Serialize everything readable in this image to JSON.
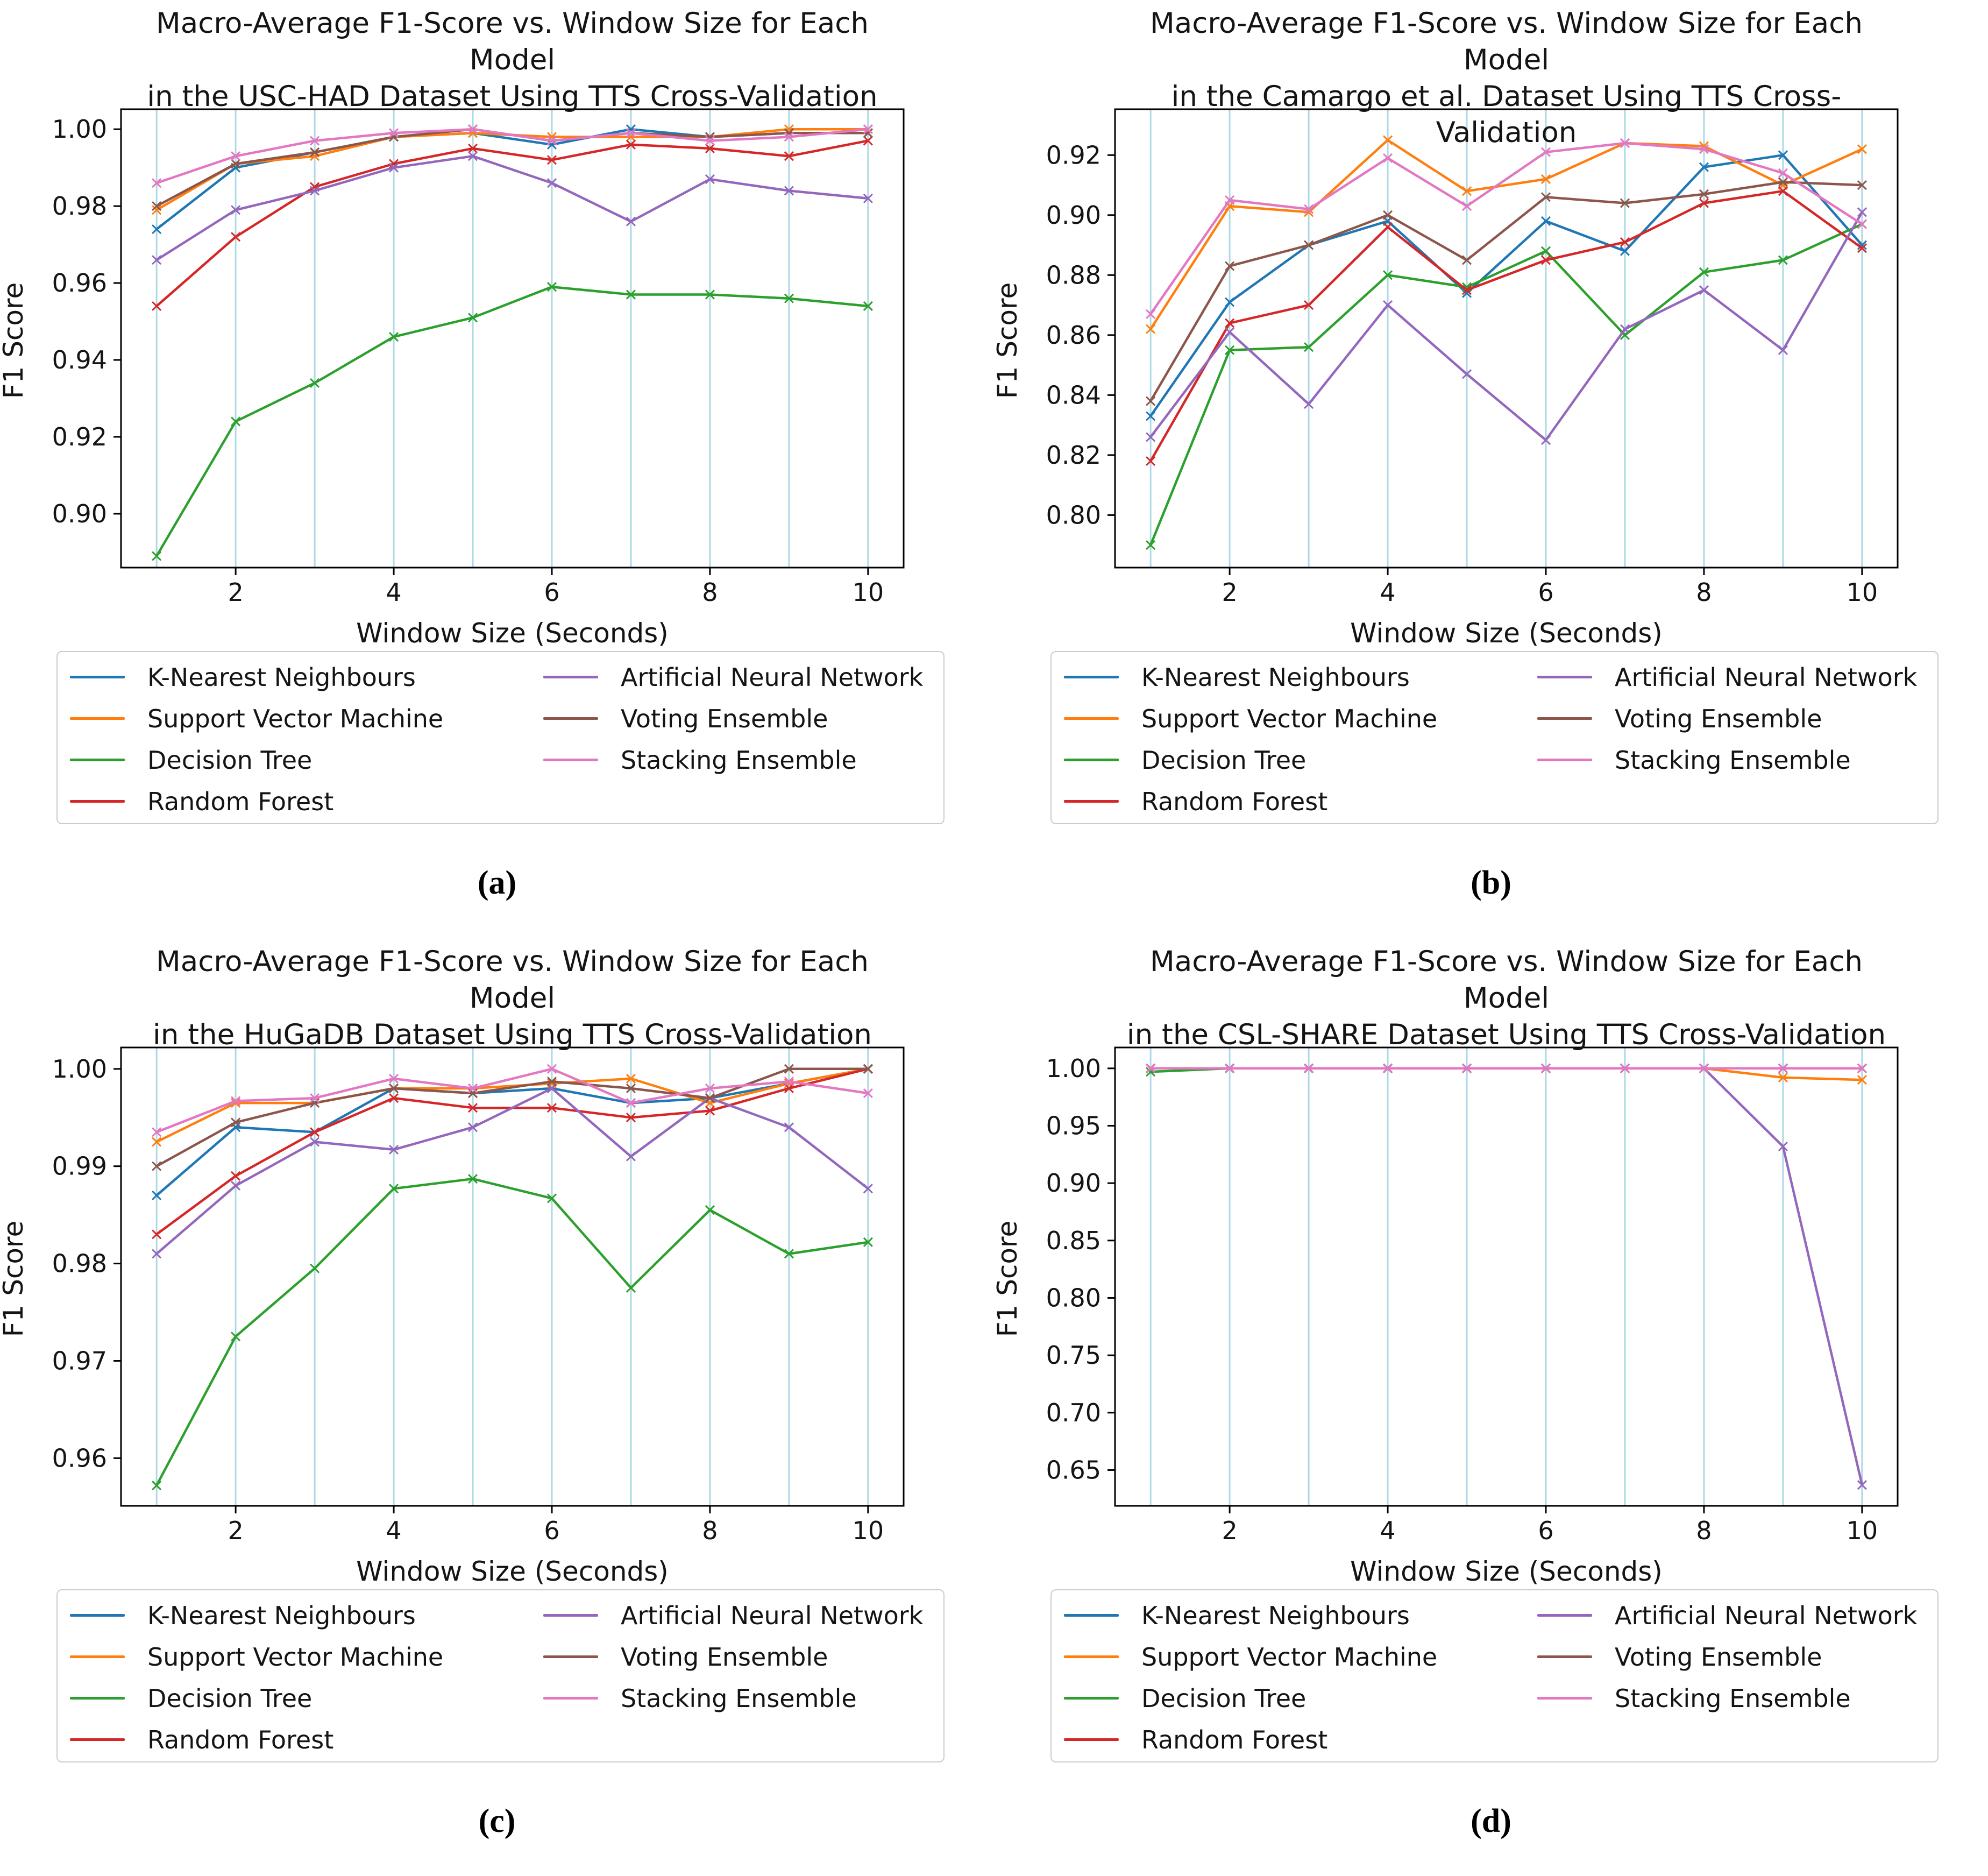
{
  "chart_data": [
    {
      "type": "line",
      "title_line1": "Macro-Average F1-Score vs. Window Size for Each Model",
      "title_line2": "in the USC-HAD Dataset Using TTS Cross-Validation",
      "caption": "(a)",
      "xlabel": "Window Size (Seconds)",
      "ylabel": "F1 Score",
      "x": [
        1,
        2,
        3,
        4,
        5,
        6,
        7,
        8,
        9,
        10
      ],
      "xticks": [
        2,
        4,
        6,
        8,
        10
      ],
      "yticks": [
        1.0,
        0.98,
        0.96,
        0.94,
        0.92,
        0.9
      ],
      "ylim": [
        0.886,
        1.0052
      ],
      "grid": "vertical",
      "gridline_color": "#add8e6",
      "marker": "x",
      "legend_position": "below",
      "legend_columns": 2,
      "series": [
        {
          "name": "K-Nearest Neighbours",
          "color": "#1f77b4",
          "values": [
            0.974,
            0.99,
            0.994,
            0.998,
            0.999,
            0.996,
            1.0,
            0.998,
            0.999,
            0.999
          ]
        },
        {
          "name": "Support Vector Machine",
          "color": "#ff7f0e",
          "values": [
            0.979,
            0.991,
            0.993,
            0.998,
            0.999,
            0.998,
            0.998,
            0.998,
            1.0,
            1.0
          ]
        },
        {
          "name": "Decision Tree",
          "color": "#2ca02c",
          "values": [
            0.889,
            0.924,
            0.934,
            0.946,
            0.951,
            0.959,
            0.957,
            0.957,
            0.956,
            0.954
          ]
        },
        {
          "name": "Random Forest",
          "color": "#d62728",
          "values": [
            0.954,
            0.972,
            0.985,
            0.991,
            0.995,
            0.992,
            0.996,
            0.995,
            0.993,
            0.997
          ]
        },
        {
          "name": "Artificial Neural Network",
          "color": "#9467bd",
          "values": [
            0.966,
            0.979,
            0.984,
            0.99,
            0.993,
            0.986,
            0.976,
            0.987,
            0.984,
            0.982
          ]
        },
        {
          "name": "Voting Ensemble",
          "color": "#8c564b",
          "values": [
            0.98,
            0.991,
            0.994,
            0.998,
            1.0,
            0.997,
            0.999,
            0.998,
            0.999,
            0.999
          ]
        },
        {
          "name": "Stacking Ensemble",
          "color": "#e377c2",
          "values": [
            0.986,
            0.993,
            0.997,
            0.999,
            1.0,
            0.997,
            0.999,
            0.997,
            0.998,
            1.0
          ]
        }
      ]
    },
    {
      "type": "line",
      "title_line1": "Macro-Average F1-Score vs. Window Size for Each Model",
      "title_line2": "in the Camargo et al. Dataset Using TTS Cross-Validation",
      "caption": "(b)",
      "xlabel": "Window Size (Seconds)",
      "ylabel": "F1 Score",
      "x": [
        1,
        2,
        3,
        4,
        5,
        6,
        7,
        8,
        9,
        10
      ],
      "xticks": [
        2,
        4,
        6,
        8,
        10
      ],
      "yticks": [
        0.92,
        0.9,
        0.88,
        0.86,
        0.84,
        0.82,
        0.8
      ],
      "ylim": [
        0.7825,
        0.9353
      ],
      "grid": "vertical",
      "gridline_color": "#add8e6",
      "marker": "x",
      "legend_position": "below",
      "legend_columns": 2,
      "series": [
        {
          "name": "K-Nearest Neighbours",
          "color": "#1f77b4",
          "values": [
            0.833,
            0.871,
            0.89,
            0.898,
            0.874,
            0.898,
            0.888,
            0.916,
            0.92,
            0.89
          ]
        },
        {
          "name": "Support Vector Machine",
          "color": "#ff7f0e",
          "values": [
            0.862,
            0.903,
            0.901,
            0.925,
            0.908,
            0.912,
            0.924,
            0.923,
            0.91,
            0.922
          ]
        },
        {
          "name": "Decision Tree",
          "color": "#2ca02c",
          "values": [
            0.79,
            0.855,
            0.856,
            0.88,
            0.876,
            0.888,
            0.86,
            0.881,
            0.885,
            0.897
          ]
        },
        {
          "name": "Random Forest",
          "color": "#d62728",
          "values": [
            0.818,
            0.864,
            0.87,
            0.896,
            0.875,
            0.885,
            0.891,
            0.904,
            0.908,
            0.889
          ]
        },
        {
          "name": "Artificial Neural Network",
          "color": "#9467bd",
          "values": [
            0.826,
            0.861,
            0.837,
            0.87,
            0.847,
            0.825,
            0.862,
            0.875,
            0.855,
            0.901
          ]
        },
        {
          "name": "Voting Ensemble",
          "color": "#8c564b",
          "values": [
            0.838,
            0.883,
            0.89,
            0.9,
            0.885,
            0.906,
            0.904,
            0.907,
            0.911,
            0.91
          ]
        },
        {
          "name": "Stacking Ensemble",
          "color": "#e377c2",
          "values": [
            0.867,
            0.905,
            0.902,
            0.919,
            0.903,
            0.921,
            0.924,
            0.922,
            0.914,
            0.897
          ]
        }
      ]
    },
    {
      "type": "line",
      "title_line1": "Macro-Average F1-Score vs. Window Size for Each Model",
      "title_line2": "in the HuGaDB Dataset Using TTS Cross-Validation",
      "caption": "(c)",
      "xlabel": "Window Size (Seconds)",
      "ylabel": "F1 Score",
      "x": [
        1,
        2,
        3,
        4,
        5,
        6,
        7,
        8,
        9,
        10
      ],
      "xticks": [
        2,
        4,
        6,
        8,
        10
      ],
      "yticks": [
        1.0,
        0.99,
        0.98,
        0.97,
        0.96
      ],
      "ylim": [
        0.9551,
        1.0022
      ],
      "grid": "vertical",
      "gridline_color": "#add8e6",
      "marker": "x",
      "legend_position": "below",
      "legend_columns": 2,
      "series": [
        {
          "name": "K-Nearest Neighbours",
          "color": "#1f77b4",
          "values": [
            0.987,
            0.994,
            0.9935,
            0.998,
            0.9975,
            0.998,
            0.9965,
            0.997,
            0.9985,
            1.0
          ]
        },
        {
          "name": "Support Vector Machine",
          "color": "#ff7f0e",
          "values": [
            0.9925,
            0.9965,
            0.9965,
            0.998,
            0.998,
            0.9985,
            0.999,
            0.9965,
            0.9985,
            1.0
          ]
        },
        {
          "name": "Decision Tree",
          "color": "#2ca02c",
          "values": [
            0.9572,
            0.9725,
            0.9795,
            0.9877,
            0.9887,
            0.9867,
            0.9775,
            0.9855,
            0.981,
            0.9822
          ]
        },
        {
          "name": "Random Forest",
          "color": "#d62728",
          "values": [
            0.983,
            0.989,
            0.9935,
            0.997,
            0.996,
            0.996,
            0.995,
            0.9957,
            0.998,
            1.0
          ]
        },
        {
          "name": "Artificial Neural Network",
          "color": "#9467bd",
          "values": [
            0.981,
            0.988,
            0.9925,
            0.9917,
            0.994,
            0.998,
            0.991,
            0.997,
            0.994,
            0.9877
          ]
        },
        {
          "name": "Voting Ensemble",
          "color": "#8c564b",
          "values": [
            0.99,
            0.9945,
            0.9965,
            0.998,
            0.9975,
            0.9987,
            0.998,
            0.997,
            1.0,
            1.0
          ]
        },
        {
          "name": "Stacking Ensemble",
          "color": "#e377c2",
          "values": [
            0.9935,
            0.9967,
            0.997,
            0.999,
            0.998,
            1.0,
            0.9965,
            0.998,
            0.9987,
            0.9975
          ]
        }
      ]
    },
    {
      "type": "line",
      "title_line1": "Macro-Average F1-Score vs. Window Size for Each Model",
      "title_line2": "in the CSL-SHARE Dataset Using TTS Cross-Validation",
      "caption": "(d)",
      "xlabel": "Window Size (Seconds)",
      "ylabel": "F1 Score",
      "x": [
        1,
        2,
        3,
        4,
        5,
        6,
        7,
        8,
        9,
        10
      ],
      "xticks": [
        2,
        4,
        6,
        8,
        10
      ],
      "yticks": [
        1.0,
        0.95,
        0.9,
        0.85,
        0.8,
        0.75,
        0.7,
        0.65
      ],
      "ylim": [
        0.6188,
        1.0182
      ],
      "grid": "vertical",
      "gridline_color": "#add8e6",
      "marker": "x",
      "legend_position": "below",
      "legend_columns": 2,
      "series": [
        {
          "name": "K-Nearest Neighbours",
          "color": "#1f77b4",
          "values": [
            1.0,
            1.0,
            1.0,
            1.0,
            1.0,
            1.0,
            1.0,
            1.0,
            1.0,
            1.0
          ]
        },
        {
          "name": "Support Vector Machine",
          "color": "#ff7f0e",
          "values": [
            1.0,
            1.0,
            1.0,
            1.0,
            1.0,
            1.0,
            1.0,
            1.0,
            0.992,
            0.99
          ]
        },
        {
          "name": "Decision Tree",
          "color": "#2ca02c",
          "values": [
            0.997,
            1.0,
            1.0,
            1.0,
            1.0,
            1.0,
            1.0,
            1.0,
            1.0,
            1.0
          ]
        },
        {
          "name": "Random Forest",
          "color": "#d62728",
          "values": [
            1.0,
            1.0,
            1.0,
            1.0,
            1.0,
            1.0,
            1.0,
            1.0,
            1.0,
            1.0
          ]
        },
        {
          "name": "Artificial Neural Network",
          "color": "#9467bd",
          "values": [
            1.0,
            1.0,
            1.0,
            1.0,
            1.0,
            1.0,
            1.0,
            1.0,
            0.932,
            0.637
          ]
        },
        {
          "name": "Voting Ensemble",
          "color": "#8c564b",
          "values": [
            1.0,
            1.0,
            1.0,
            1.0,
            1.0,
            1.0,
            1.0,
            1.0,
            1.0,
            1.0
          ]
        },
        {
          "name": "Stacking Ensemble",
          "color": "#e377c2",
          "values": [
            1.0,
            1.0,
            1.0,
            1.0,
            1.0,
            1.0,
            1.0,
            1.0,
            1.0,
            1.0
          ]
        }
      ]
    }
  ]
}
